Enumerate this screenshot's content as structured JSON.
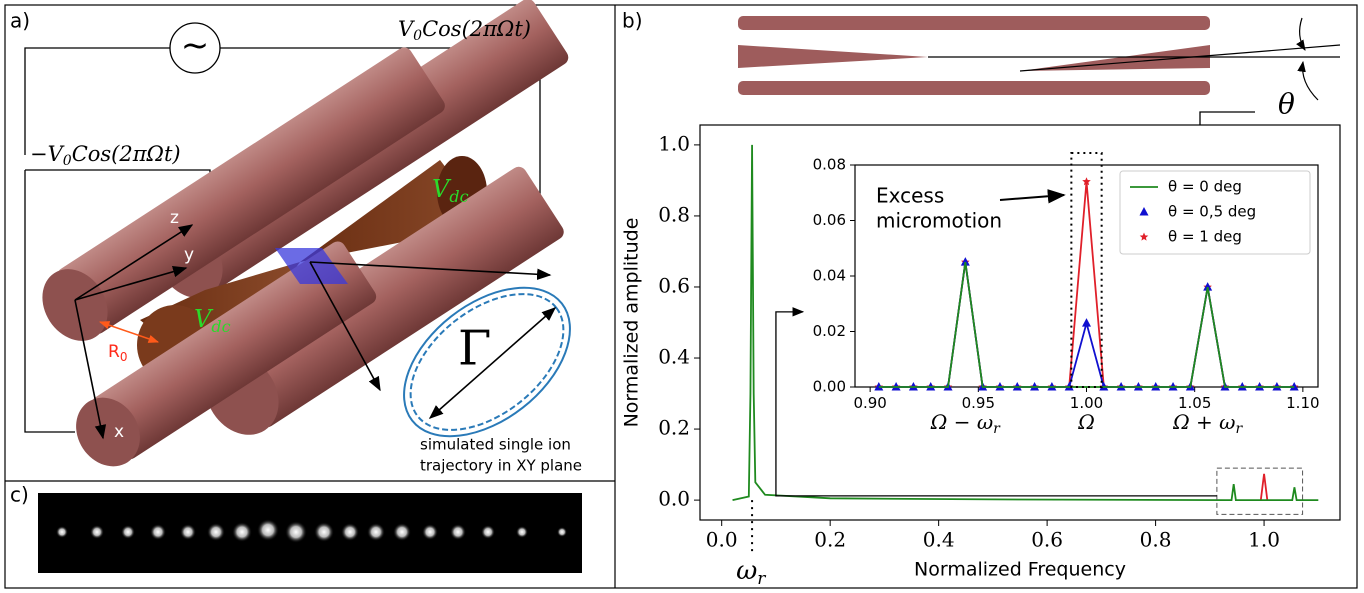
{
  "panel_labels": [
    "a)",
    "b)",
    "c)"
  ],
  "diagram": {
    "voltage_top": [
      "V",
      "0",
      "Cos(2πΩt)"
    ],
    "voltage_left": [
      "−V",
      "0",
      "Cos(2πΩt)"
    ],
    "source": "~",
    "vdc": [
      "V",
      "dc"
    ],
    "axes": [
      "z",
      "y",
      "x"
    ],
    "r0": [
      "R",
      "0"
    ],
    "gamma": "Γ",
    "trajectory_caption": [
      "simulated single ion",
      "trajectory in XY plane"
    ]
  },
  "annotations": {
    "omega_r": [
      "ω",
      "r"
    ],
    "theta": "θ",
    "excess": [
      "Excess",
      "micromotion"
    ],
    "inset_x": [
      [
        "Ω − ω",
        "r"
      ],
      [
        "Ω"
      ],
      [
        "Ω + ω",
        "r"
      ]
    ]
  },
  "chart_data": [
    {
      "type": "line",
      "xlabel": "Normalized Frequency",
      "ylabel": "Normalized amplitude",
      "xlim": [
        -0.04,
        1.14
      ],
      "ylim": [
        -0.056,
        1.056
      ],
      "xticks": [
        {
          "value": 0,
          "label": "0.0"
        },
        0.2,
        0.4,
        0.6,
        0.8,
        {
          "value": 1,
          "label": "1.0"
        }
      ],
      "yticks": [
        {
          "value": 0,
          "label": "0.0"
        },
        0.2,
        0.4,
        0.6,
        0.8,
        {
          "value": 1,
          "label": "1.0"
        }
      ],
      "series": [
        {
          "color": "#e0202a",
          "x": [
            0.994,
            1.0,
            1.006
          ],
          "values": [
            0,
            0.074,
            0
          ]
        },
        {
          "color": "#1f8a1f",
          "x": [
            0.02,
            0.05,
            0.053,
            0.056,
            0.059,
            0.062,
            0.08,
            0.2,
            0.5,
            0.93,
            0.94,
            0.944,
            0.948,
            0.955,
            0.99,
            1.0,
            1.01,
            1.045,
            1.052,
            1.056,
            1.06,
            1.067,
            1.1
          ],
          "values": [
            0,
            0.01,
            0.3,
            1.0,
            0.3,
            0.05,
            0.015,
            0.005,
            0.002,
            0,
            0,
            0.045,
            0,
            0,
            0,
            0,
            0,
            0,
            0,
            0.036,
            0,
            0,
            0
          ]
        }
      ]
    },
    {
      "type": "line",
      "x": [
        0.904,
        0.912,
        0.92,
        0.928,
        0.936,
        0.944,
        0.952,
        0.96,
        0.968,
        0.976,
        0.984,
        0.992,
        1.0,
        1.008,
        1.016,
        1.024,
        1.032,
        1.04,
        1.048,
        1.056,
        1.064,
        1.072,
        1.08,
        1.088,
        1.096
      ],
      "xlim": [
        0.893,
        1.107
      ],
      "ylim": [
        0,
        0.08
      ],
      "xticks": [
        {
          "value": 0.9,
          "label": "0.90"
        },
        0.95,
        {
          "value": 1,
          "label": "1.00"
        },
        1.05,
        {
          "value": 1.1,
          "label": "1.10"
        }
      ],
      "yticks": [
        {
          "value": 0,
          "label": "0.00"
        },
        0.02,
        0.04,
        0.06,
        0.08
      ],
      "legend": "upper right",
      "series": [
        {
          "name": "θ = 1 deg",
          "color": "#e0202a",
          "marker": "star",
          "values": [
            0,
            0,
            0,
            0,
            0,
            0.045,
            0,
            0,
            0,
            0,
            0,
            0,
            0.074,
            0,
            0,
            0,
            0,
            0,
            0,
            0.036,
            0,
            0,
            0,
            0,
            0
          ]
        },
        {
          "name": "θ = 0,5 deg",
          "color": "#1010d0",
          "marker": "triangle",
          "values": [
            0,
            0,
            0,
            0,
            0,
            0.045,
            0,
            0,
            0,
            0,
            0,
            0,
            0.023,
            0,
            0,
            0,
            0,
            0,
            0,
            0.036,
            0,
            0,
            0,
            0,
            0
          ]
        },
        {
          "name": "θ = 0 deg",
          "color": "#1f8a1f",
          "marker": "none",
          "values": [
            0,
            0,
            0,
            0,
            0,
            0.045,
            0,
            0,
            0,
            0,
            0,
            0,
            0,
            0,
            0,
            0,
            0,
            0,
            0,
            0.036,
            0,
            0,
            0,
            0,
            0
          ]
        }
      ]
    }
  ]
}
